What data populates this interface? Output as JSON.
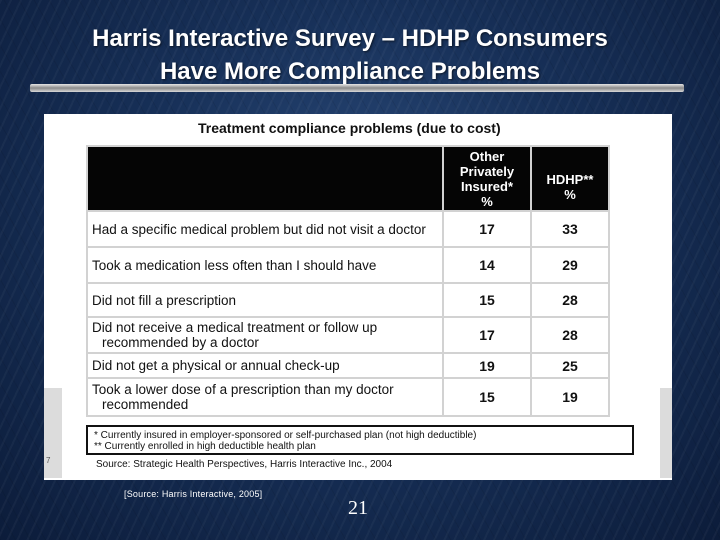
{
  "slide": {
    "title_line1": "Harris Interactive Survey – HDHP Consumers",
    "title_line2": "Have More Compliance Problems",
    "citation": "[Source: Harris Interactive, 2005]",
    "page_number": "21",
    "panel_number": "7",
    "colors": {
      "background": "#173058",
      "header_bg": "#050505",
      "panel_bg": "#ffffff"
    }
  },
  "table": {
    "title": "Treatment compliance problems (due to cost)",
    "columns": [
      {
        "line1": "Other",
        "line2": "Privately",
        "line3": "Insured*",
        "line4": "%"
      },
      {
        "line1": "HDHP**",
        "line2": "%"
      }
    ],
    "rows": [
      {
        "label_line1": "Had a specific medical problem but did not visit a doctor",
        "label_line2": "",
        "other": "17",
        "hdhp": "33"
      },
      {
        "label_line1": "Took a medication less often than I should have",
        "label_line2": "",
        "other": "14",
        "hdhp": "29"
      },
      {
        "label_line1": "Did not fill a prescription",
        "label_line2": "",
        "other": "15",
        "hdhp": "28"
      },
      {
        "label_line1": "Did not receive a medical treatment or follow up",
        "label_line2": "recommended by a doctor",
        "other": "17",
        "hdhp": "28"
      },
      {
        "label_line1": "Did not get a physical or annual check-up",
        "label_line2": "",
        "other": "19",
        "hdhp": "25"
      },
      {
        "label_line1": "Took a lower dose of a prescription than my doctor",
        "label_line2": "recommended",
        "other": "15",
        "hdhp": "19"
      }
    ],
    "footnote1": "* Currently insured in employer-sponsored or self-purchased plan (not high deductible)",
    "footnote2": "** Currently enrolled in high deductible health plan",
    "source": "Source: Strategic Health Perspectives, Harris Interactive Inc., 2004"
  }
}
